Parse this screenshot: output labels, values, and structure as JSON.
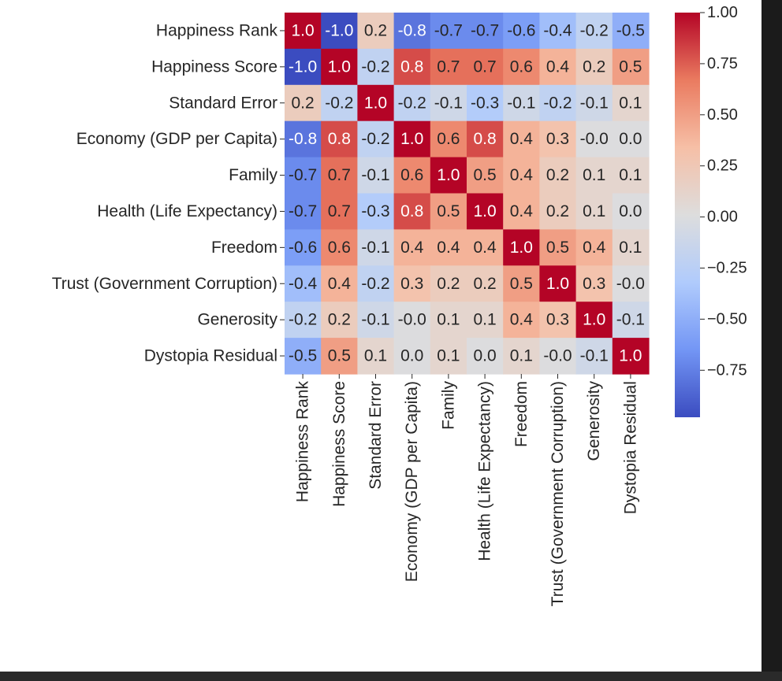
{
  "chart_data": {
    "type": "heatmap",
    "title": "",
    "row_labels": [
      "Happiness Rank",
      "Happiness Score",
      "Standard Error",
      "Economy (GDP per Capita)",
      "Family",
      "Health (Life Expectancy)",
      "Freedom",
      "Trust (Government Corruption)",
      "Generosity",
      "Dystopia Residual"
    ],
    "col_labels": [
      "Happiness Rank",
      "Happiness Score",
      "Standard Error",
      "Economy (GDP per Capita)",
      "Family",
      "Health (Life Expectancy)",
      "Freedom",
      "Trust (Government Corruption)",
      "Generosity",
      "Dystopia Residual"
    ],
    "values": [
      [
        1.0,
        -1.0,
        0.2,
        -0.8,
        -0.7,
        -0.7,
        -0.6,
        -0.4,
        -0.2,
        -0.5
      ],
      [
        -1.0,
        1.0,
        -0.2,
        0.8,
        0.7,
        0.7,
        0.6,
        0.4,
        0.2,
        0.5
      ],
      [
        0.2,
        -0.2,
        1.0,
        -0.2,
        -0.1,
        -0.3,
        -0.1,
        -0.2,
        -0.1,
        0.1
      ],
      [
        -0.8,
        0.8,
        -0.2,
        1.0,
        0.6,
        0.8,
        0.4,
        0.3,
        -0.0,
        0.0
      ],
      [
        -0.7,
        0.7,
        -0.1,
        0.6,
        1.0,
        0.5,
        0.4,
        0.2,
        0.1,
        0.1
      ],
      [
        -0.7,
        0.7,
        -0.3,
        0.8,
        0.5,
        1.0,
        0.4,
        0.2,
        0.1,
        0.0
      ],
      [
        -0.6,
        0.6,
        -0.1,
        0.4,
        0.4,
        0.4,
        1.0,
        0.5,
        0.4,
        0.1
      ],
      [
        -0.4,
        0.4,
        -0.2,
        0.3,
        0.2,
        0.2,
        0.5,
        1.0,
        0.3,
        -0.0
      ],
      [
        -0.2,
        0.2,
        -0.1,
        -0.0,
        0.1,
        0.1,
        0.4,
        0.3,
        1.0,
        -0.1
      ],
      [
        -0.5,
        0.5,
        0.1,
        0.0,
        0.1,
        0.0,
        0.1,
        -0.0,
        -0.1,
        1.0
      ]
    ],
    "value_format": "0.1f",
    "colormap": "coolwarm",
    "colormap_stops": [
      "#3b4cc0",
      "#7396f5",
      "#b0cbfc",
      "#dddddd",
      "#f6bfa6",
      "#ea7b60",
      "#b40426"
    ],
    "colorbar": {
      "range": [
        -0.98,
        1.0
      ],
      "ticks": [
        1.0,
        0.75,
        0.5,
        0.25,
        0.0,
        -0.25,
        -0.5,
        -0.75
      ],
      "tick_labels": [
        "1.00",
        "0.75",
        "0.50",
        "0.25",
        "0.00",
        "−0.25",
        "−0.50",
        "−0.75"
      ]
    },
    "annot_text_colors": {
      "dark": "#262626",
      "light": "#ffffff"
    },
    "xlabel": "",
    "ylabel": ""
  }
}
